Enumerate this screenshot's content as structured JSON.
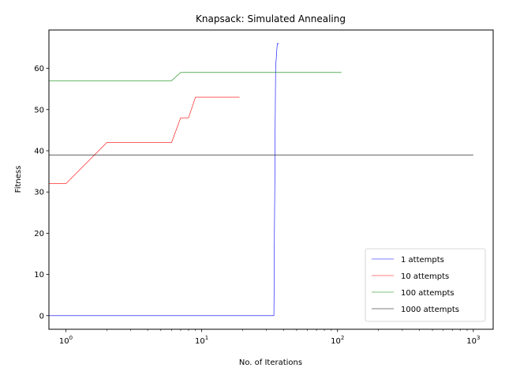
{
  "chart_data": {
    "type": "line",
    "title": "Knapsack: Simulated Annealing",
    "xlabel": "No. of Iterations",
    "ylabel": "Fitness",
    "xscale": "log",
    "xlim": [
      0.75,
      1400
    ],
    "ylim": [
      -3.3,
      69.3
    ],
    "x_ticks": [
      1,
      10,
      100,
      1000
    ],
    "x_tick_labels": [
      {
        "base": "10",
        "exp": "0"
      },
      {
        "base": "10",
        "exp": "1"
      },
      {
        "base": "10",
        "exp": "2"
      },
      {
        "base": "10",
        "exp": "3"
      }
    ],
    "y_ticks": [
      0,
      10,
      20,
      30,
      40,
      50,
      60
    ],
    "y_tick_labels": [
      "0",
      "10",
      "20",
      "30",
      "40",
      "50",
      "60"
    ],
    "grid": false,
    "legend_position": "lower-right",
    "series": [
      {
        "name": "1 attempts",
        "color": "#0000ff",
        "points": [
          [
            0.75,
            0
          ],
          [
            34,
            0
          ],
          [
            35,
            60
          ],
          [
            36,
            66
          ],
          [
            37,
            66
          ]
        ]
      },
      {
        "name": "10 attempts",
        "color": "#ff0000",
        "points": [
          [
            0.75,
            32
          ],
          [
            1,
            32
          ],
          [
            2,
            42
          ],
          [
            6,
            42
          ],
          [
            7,
            48
          ],
          [
            8,
            48
          ],
          [
            9,
            53
          ],
          [
            19,
            53
          ]
        ]
      },
      {
        "name": "100 attempts",
        "color": "#008000",
        "points": [
          [
            0.75,
            57
          ],
          [
            6,
            57
          ],
          [
            7,
            59
          ],
          [
            107,
            59
          ]
        ]
      },
      {
        "name": "1000 attempts",
        "color": "#000000",
        "points": [
          [
            0.75,
            39
          ],
          [
            1000,
            39
          ]
        ]
      }
    ]
  }
}
